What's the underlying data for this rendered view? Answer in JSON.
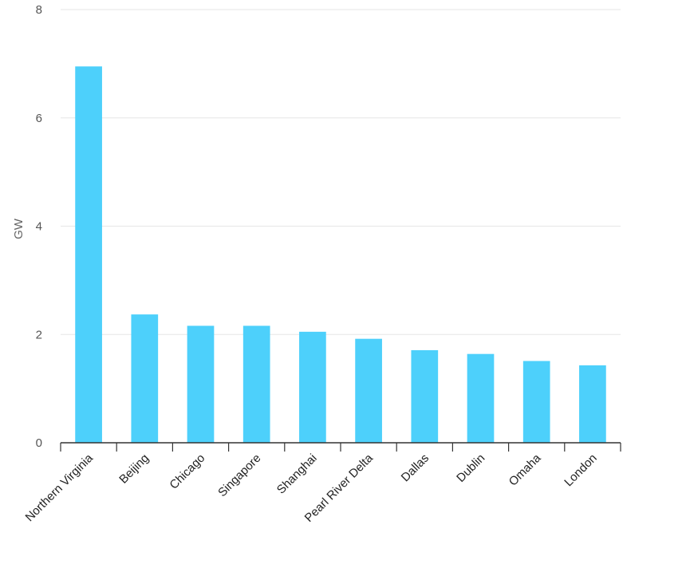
{
  "chart_data": {
    "type": "bar",
    "categories": [
      "Northern Virginia",
      "Beijing",
      "Chicago",
      "Singapore",
      "Shanghai",
      "Pearl River Delta",
      "Dallas",
      "Dublin",
      "Omaha",
      "London"
    ],
    "values": [
      6.95,
      2.37,
      2.16,
      2.16,
      2.05,
      1.92,
      1.71,
      1.64,
      1.51,
      1.43
    ],
    "title": "",
    "xlabel": "",
    "ylabel": "GW",
    "ylim": [
      0,
      8
    ],
    "yticks": [
      0,
      2,
      4,
      6,
      8
    ],
    "grid": true,
    "bar_color": "#4dd0fb",
    "grid_color": "#e6e6e6",
    "axis_color": "#333333"
  }
}
